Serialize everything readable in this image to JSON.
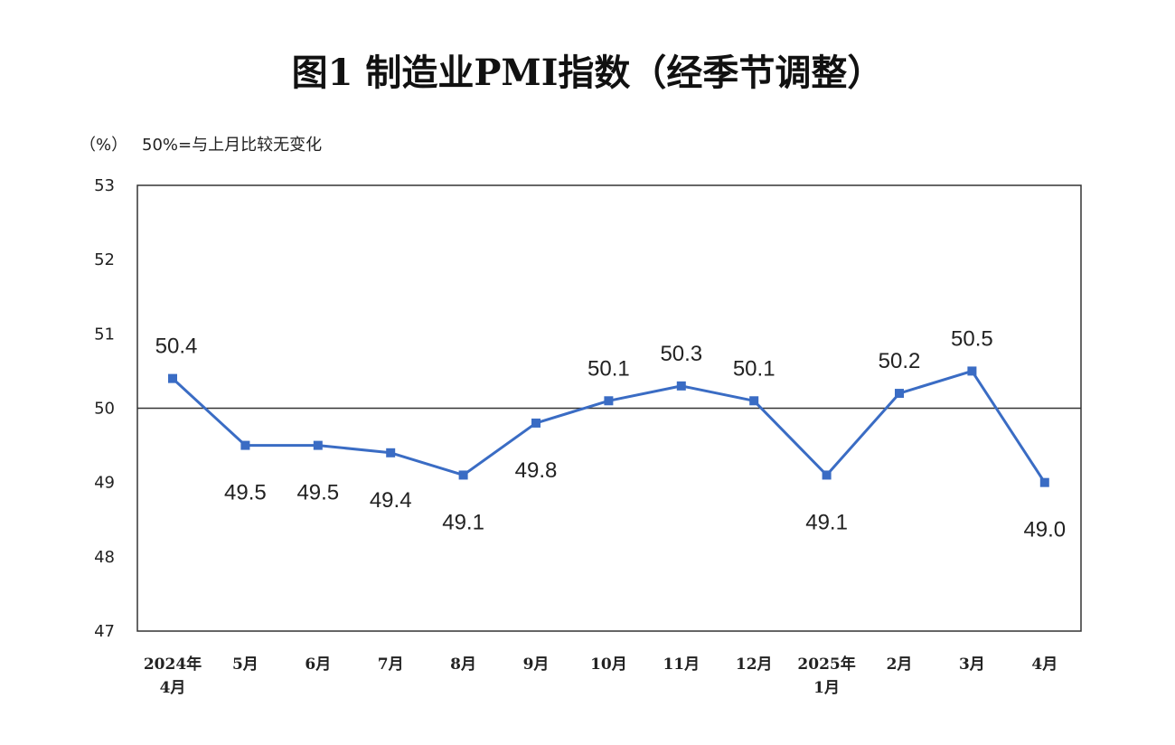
{
  "chart_data": {
    "type": "line",
    "title": "图1  制造业PMI指数（经季节调整）",
    "unit_label": "（%）",
    "note": "50%=与上月比较无变化",
    "categories": [
      [
        "2024年",
        "4月"
      ],
      [
        "5月"
      ],
      [
        "6月"
      ],
      [
        "7月"
      ],
      [
        "8月"
      ],
      [
        "9月"
      ],
      [
        "10月"
      ],
      [
        "11月"
      ],
      [
        "12月"
      ],
      [
        "2025年",
        "1月"
      ],
      [
        "2月"
      ],
      [
        "3月"
      ],
      [
        "4月"
      ]
    ],
    "values": [
      50.4,
      49.5,
      49.5,
      49.4,
      49.1,
      49.8,
      50.1,
      50.3,
      50.1,
      49.1,
      50.2,
      50.5,
      49.0
    ],
    "data_labels": [
      "50.4",
      "49.5",
      "49.5",
      "49.4",
      "49.1",
      "49.8",
      "50.1",
      "50.3",
      "50.1",
      "49.1",
      "50.2",
      "50.5",
      "49.0"
    ],
    "label_position": [
      "above",
      "below",
      "below",
      "below",
      "below",
      "below",
      "above",
      "above",
      "above",
      "below",
      "above",
      "above",
      "below"
    ],
    "ylim": [
      47,
      53
    ],
    "yticks": [
      "47",
      "48",
      "49",
      "50",
      "51",
      "52",
      "53"
    ],
    "reference_line": 50,
    "grid": false,
    "legend": "none",
    "line_color": "#3a6cc4",
    "marker": "square"
  }
}
